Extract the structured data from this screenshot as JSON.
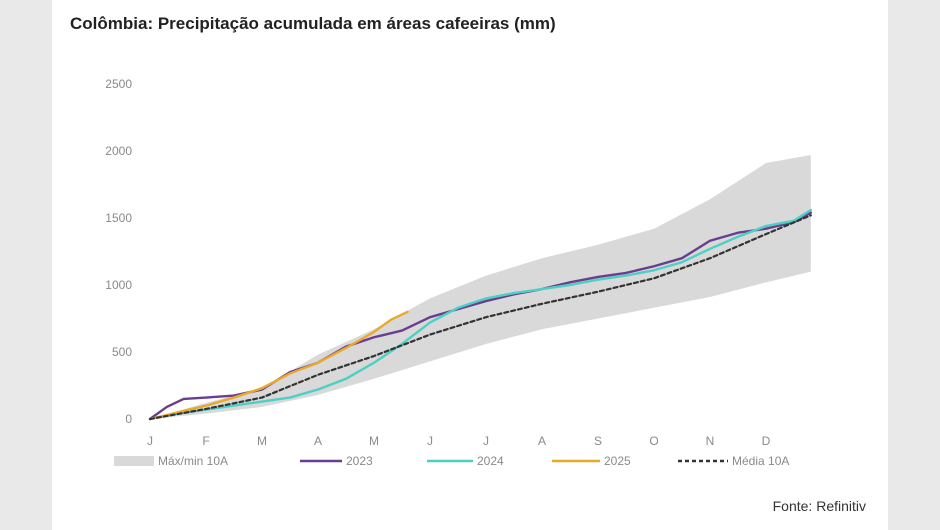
{
  "header": {
    "title": "Colômbia: Precipitação acumulada em áreas cafeeiras (mm)"
  },
  "footer": {
    "source": "Fonte: Refinitiv"
  },
  "colors": {
    "band": "#d9d9d9",
    "s2023": "#6a3d8f",
    "s2024": "#4dd0c4",
    "s2025": "#e9a92b",
    "avg": "#333333",
    "tick": "#8a8a8a"
  },
  "chart_data": {
    "type": "line",
    "xlim": [
      0,
      12
    ],
    "ylim": [
      0,
      2500
    ],
    "x_ticks": [
      {
        "label": "J",
        "x": 0
      },
      {
        "label": "F",
        "x": 1
      },
      {
        "label": "M",
        "x": 2
      },
      {
        "label": "A",
        "x": 3
      },
      {
        "label": "M",
        "x": 4
      },
      {
        "label": "J",
        "x": 5
      },
      {
        "label": "J",
        "x": 6
      },
      {
        "label": "A",
        "x": 7
      },
      {
        "label": "S",
        "x": 8
      },
      {
        "label": "O",
        "x": 9
      },
      {
        "label": "N",
        "x": 10
      },
      {
        "label": "D",
        "x": 11
      }
    ],
    "y_ticks": [
      0,
      500,
      1000,
      1500,
      2000,
      2500
    ],
    "band": {
      "name": "Máx/min 10A",
      "upper": [
        [
          0,
          0
        ],
        [
          1,
          120
        ],
        [
          2,
          230
        ],
        [
          3,
          480
        ],
        [
          4,
          670
        ],
        [
          5,
          900
        ],
        [
          6,
          1070
        ],
        [
          7,
          1200
        ],
        [
          8,
          1300
        ],
        [
          9,
          1420
        ],
        [
          10,
          1640
        ],
        [
          11,
          1910
        ],
        [
          11.8,
          1970
        ]
      ],
      "lower": [
        [
          0,
          0
        ],
        [
          1,
          40
        ],
        [
          2,
          90
        ],
        [
          3,
          180
        ],
        [
          4,
          300
        ],
        [
          5,
          430
        ],
        [
          6,
          560
        ],
        [
          7,
          670
        ],
        [
          8,
          750
        ],
        [
          9,
          830
        ],
        [
          10,
          910
        ],
        [
          11,
          1020
        ],
        [
          11.8,
          1100
        ]
      ]
    },
    "series": [
      {
        "name": "2023",
        "points": [
          [
            0,
            0
          ],
          [
            0.3,
            90
          ],
          [
            0.6,
            150
          ],
          [
            1,
            160
          ],
          [
            1.5,
            175
          ],
          [
            2,
            220
          ],
          [
            2.5,
            350
          ],
          [
            3,
            420
          ],
          [
            3.5,
            540
          ],
          [
            4,
            610
          ],
          [
            4.5,
            660
          ],
          [
            5,
            760
          ],
          [
            5.5,
            820
          ],
          [
            6,
            880
          ],
          [
            6.5,
            930
          ],
          [
            7,
            970
          ],
          [
            7.5,
            1020
          ],
          [
            8,
            1060
          ],
          [
            8.5,
            1090
          ],
          [
            9,
            1140
          ],
          [
            9.5,
            1200
          ],
          [
            10,
            1330
          ],
          [
            10.5,
            1390
          ],
          [
            11,
            1420
          ],
          [
            11.5,
            1470
          ],
          [
            11.8,
            1540
          ]
        ]
      },
      {
        "name": "2024",
        "points": [
          [
            0,
            0
          ],
          [
            0.5,
            40
          ],
          [
            1,
            70
          ],
          [
            1.5,
            100
          ],
          [
            2,
            130
          ],
          [
            2.5,
            160
          ],
          [
            3,
            220
          ],
          [
            3.5,
            300
          ],
          [
            4,
            420
          ],
          [
            4.5,
            560
          ],
          [
            5,
            720
          ],
          [
            5.5,
            830
          ],
          [
            6,
            900
          ],
          [
            6.5,
            940
          ],
          [
            7,
            970
          ],
          [
            7.5,
            1000
          ],
          [
            8,
            1040
          ],
          [
            8.5,
            1070
          ],
          [
            9,
            1110
          ],
          [
            9.5,
            1170
          ],
          [
            10,
            1270
          ],
          [
            10.5,
            1360
          ],
          [
            11,
            1440
          ],
          [
            11.5,
            1480
          ],
          [
            11.8,
            1560
          ]
        ]
      },
      {
        "name": "2025",
        "points": [
          [
            0,
            0
          ],
          [
            0.5,
            50
          ],
          [
            1,
            100
          ],
          [
            1.5,
            160
          ],
          [
            2,
            230
          ],
          [
            2.5,
            340
          ],
          [
            3,
            420
          ],
          [
            3.5,
            530
          ],
          [
            4,
            650
          ],
          [
            4.3,
            740
          ],
          [
            4.6,
            800
          ]
        ]
      },
      {
        "name": "Média 10A",
        "dashed": true,
        "points": [
          [
            0,
            0
          ],
          [
            1,
            75
          ],
          [
            2,
            160
          ],
          [
            3,
            330
          ],
          [
            4,
            470
          ],
          [
            5,
            630
          ],
          [
            6,
            760
          ],
          [
            7,
            860
          ],
          [
            8,
            950
          ],
          [
            9,
            1050
          ],
          [
            10,
            1200
          ],
          [
            11,
            1380
          ],
          [
            11.8,
            1520
          ]
        ]
      }
    ],
    "legend": {
      "position": "bottom",
      "entries": [
        {
          "label": "Máx/min 10A",
          "kind": "band"
        },
        {
          "label": "2023",
          "kind": "line",
          "series": "s2023"
        },
        {
          "label": "2024",
          "kind": "line",
          "series": "s2024"
        },
        {
          "label": "2025",
          "kind": "line",
          "series": "s2025"
        },
        {
          "label": "Média 10A",
          "kind": "dash",
          "series": "avg"
        }
      ]
    }
  }
}
